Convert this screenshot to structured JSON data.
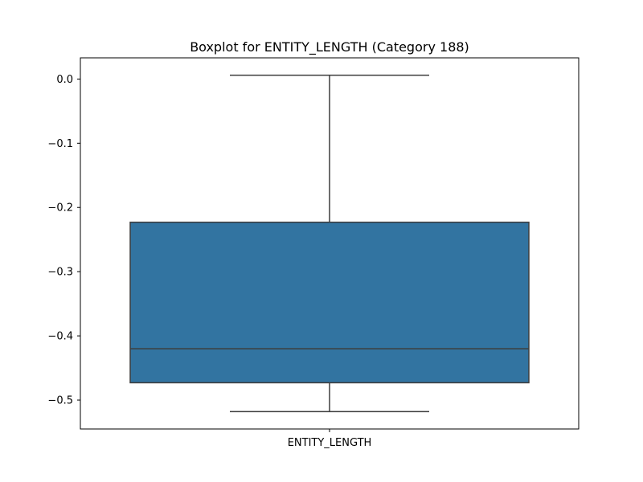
{
  "chart_data": {
    "type": "box",
    "title": "Boxplot for ENTITY_LENGTH (Category 188)",
    "xlabel": "",
    "ylabel": "",
    "categories": [
      "ENTITY_LENGTH"
    ],
    "boxes": [
      {
        "category": "ENTITY_LENGTH",
        "whisker_low": -0.518,
        "q1": -0.473,
        "median": -0.42,
        "q3": -0.223,
        "whisker_high": 0.006
      }
    ],
    "ylim": [
      -0.545,
      0.033
    ],
    "yticks": [
      0.0,
      -0.1,
      -0.2,
      -0.3,
      -0.4,
      -0.5
    ],
    "ytick_labels": [
      "0.0",
      "−0.1",
      "−0.2",
      "−0.3",
      "−0.4",
      "−0.5"
    ],
    "grid": false,
    "colors": {
      "box_fill": "#3274a1",
      "line": "#3d3d3d"
    }
  }
}
